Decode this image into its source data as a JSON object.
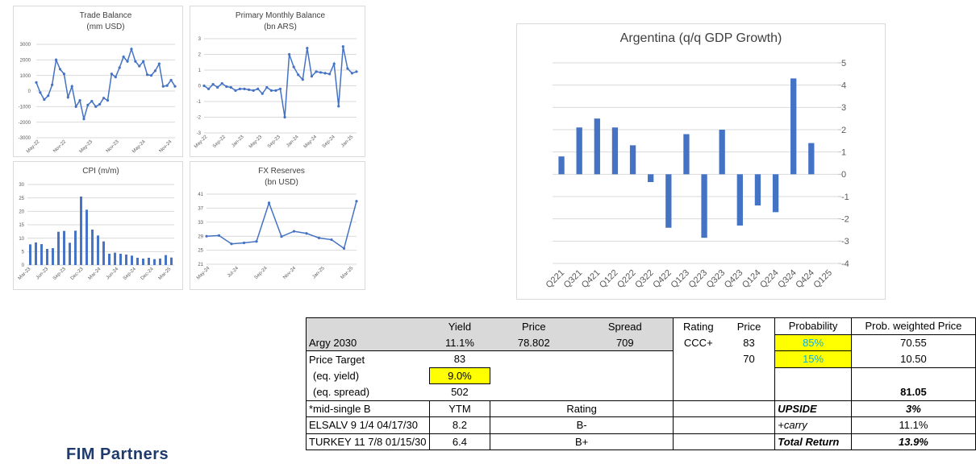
{
  "charts": [
    {
      "type": "line",
      "title": [
        "Trade Balance",
        "(mm USD)"
      ],
      "yticks": [
        3000,
        2000,
        1000,
        0,
        -1000,
        -2000,
        -3000
      ],
      "ylim": [
        -3000,
        3000
      ],
      "xticks": [
        "May-22",
        "Nov-22",
        "May-23",
        "Nov-23",
        "May-24",
        "Nov-24"
      ],
      "values": [
        550,
        -100,
        -550,
        -300,
        400,
        2000,
        1400,
        1100,
        -400,
        300,
        -1000,
        -600,
        -1800,
        -900,
        -650,
        -1000,
        -850,
        -450,
        -600,
        1100,
        900,
        1500,
        2200,
        1900,
        2700,
        1900,
        1600,
        1900,
        1050,
        1000,
        1300,
        1750,
        300,
        350,
        700,
        300
      ]
    },
    {
      "type": "line",
      "title": [
        "Primary Monthly Balance",
        "(bn ARS)"
      ],
      "yticks": [
        3,
        2,
        1,
        0,
        -1,
        -2,
        -3
      ],
      "ylim": [
        -3,
        3
      ],
      "xticks": [
        "May-22",
        "Sep-22",
        "Jan-23",
        "May-23",
        "Sep-23",
        "Jan-24",
        "May-24",
        "Sep-24",
        "Jan-25"
      ],
      "values": [
        0.0,
        -0.2,
        0.1,
        -0.1,
        0.15,
        -0.05,
        -0.1,
        -0.3,
        -0.2,
        -0.2,
        -0.25,
        -0.3,
        -0.2,
        -0.5,
        -0.1,
        -0.3,
        -0.3,
        -0.2,
        -2.0,
        2.0,
        1.2,
        0.7,
        0.4,
        2.4,
        0.6,
        0.9,
        0.85,
        0.8,
        0.75,
        1.4,
        -1.3,
        2.5,
        1.1,
        0.8,
        0.9
      ]
    },
    {
      "type": "bar",
      "title": [
        "CPI (m/m)"
      ],
      "yticks": [
        30,
        25,
        20,
        15,
        10,
        5,
        0
      ],
      "ylim": [
        0,
        30
      ],
      "xticks": [
        "Mar-23",
        "Jun-23",
        "Sep-23",
        "Dec-23",
        "Mar-24",
        "Jun-24",
        "Sep-24",
        "Dec-24",
        "Mar-25"
      ],
      "values": [
        7.7,
        8.4,
        7.8,
        6.0,
        6.3,
        12.4,
        12.7,
        8.3,
        12.8,
        25.5,
        20.6,
        13.2,
        11.0,
        8.8,
        4.2,
        4.6,
        4.2,
        3.9,
        3.5,
        2.7,
        2.4,
        2.7,
        2.2,
        2.4,
        3.7,
        2.8
      ]
    },
    {
      "type": "line",
      "title": [
        "FX Reserves",
        "(bn USD)"
      ],
      "yticks": [
        41,
        37,
        33,
        29,
        25,
        21
      ],
      "ylim": [
        21,
        41
      ],
      "xticks": [
        "May-24",
        "Jul-24",
        "Sep-24",
        "Nov-24",
        "Jan-25",
        "Mar-25"
      ],
      "values": [
        29.0,
        29.2,
        26.8,
        27.1,
        27.5,
        38.5,
        28.9,
        30.4,
        29.8,
        28.5,
        28.0,
        25.5,
        39.0
      ]
    },
    {
      "type": "bar",
      "title": [
        "Argentina (q/q GDP Growth)"
      ],
      "yticks": [
        5,
        4,
        3,
        2,
        1,
        0,
        -1,
        -2,
        -3,
        -4
      ],
      "ylim": [
        -4,
        5
      ],
      "categories": [
        "Q221",
        "Q321",
        "Q421",
        "Q122",
        "Q222",
        "Q322",
        "Q422",
        "Q123",
        "Q223",
        "Q323",
        "Q423",
        "Q124",
        "Q224",
        "Q324",
        "Q424",
        "Q125"
      ],
      "values": [
        0.8,
        2.1,
        2.5,
        2.1,
        1.3,
        -0.35,
        -2.4,
        1.8,
        -2.85,
        2.0,
        -2.3,
        -1.4,
        -1.7,
        4.3,
        1.4,
        null
      ]
    }
  ],
  "table": {
    "row1": {
      "c0": "",
      "yield": "Yield",
      "price": "Price",
      "spread": "Spread",
      "rating": "Rating",
      "price2": "Price",
      "prob": "Probability",
      "pwp": "Prob. weighted Price"
    },
    "row2": {
      "name": "Argy 2030",
      "yield": "11.1%",
      "price": "78.802",
      "spread": "709",
      "rating": "CCC+",
      "price2": "83",
      "prob": "85%",
      "pwp": "70.55"
    },
    "row3": {
      "name": "Price Target",
      "yield": "83",
      "price2": "70",
      "prob": "15%",
      "pwp": "10.50"
    },
    "row4": {
      "name": "(eq. yield)",
      "yield": "9.0%"
    },
    "row5": {
      "name": "(eq. spread)",
      "yield": "502",
      "pwp": "81.05"
    },
    "row6": {
      "name": "*mid-single B",
      "yield": "YTM",
      "spread": "Rating",
      "prob": "UPSIDE",
      "pwp": "3%"
    },
    "row7": {
      "name": "ELSALV 9 1/4 04/17/30",
      "yield": "8.2",
      "spread": "B-",
      "prob": "+carry",
      "pwp": "11.1%"
    },
    "row8": {
      "name": "TURKEY 11 7/8 01/15/30",
      "yield": "6.4",
      "spread": "B+",
      "prob": "Total Return",
      "pwp": "13.9%"
    }
  },
  "logo": "FIM Partners",
  "colors": {
    "series": "#4472c4",
    "grid": "#d9d9d9",
    "highlight": "#ffff00",
    "prob_text": "#00b0f0",
    "header_fill": "#d9d9d9"
  }
}
